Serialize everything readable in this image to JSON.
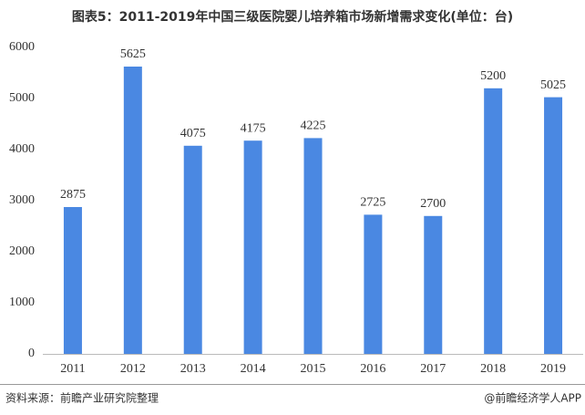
{
  "chart_data": {
    "type": "bar",
    "title": "图表5：2011-2019年中国三级医院婴儿培养箱市场新增需求变化(单位：台)",
    "categories": [
      "2011",
      "2012",
      "2013",
      "2014",
      "2015",
      "2016",
      "2017",
      "2018",
      "2019"
    ],
    "values": [
      2875,
      5625,
      4075,
      4175,
      4225,
      2725,
      2700,
      5200,
      5025
    ],
    "color": "#4a88e2",
    "ylim": [
      0,
      6000
    ],
    "yticks": [
      0,
      1000,
      2000,
      3000,
      4000,
      5000,
      6000
    ],
    "grid": false
  },
  "footer": {
    "source": "资料来源：前瞻产业研究院整理",
    "credit": "@前瞻经济学人APP"
  }
}
